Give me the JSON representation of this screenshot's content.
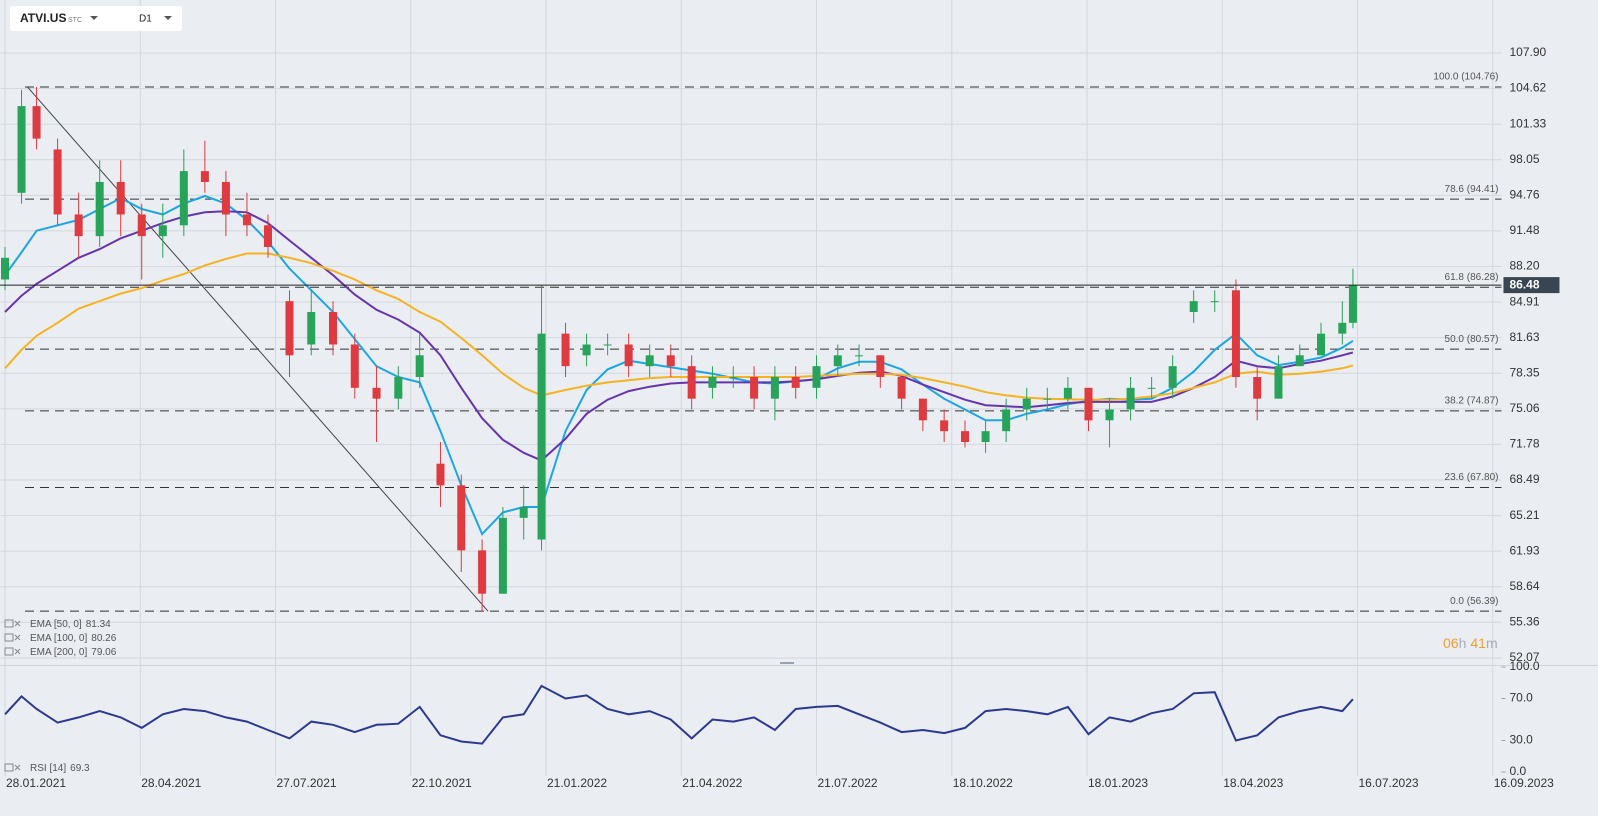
{
  "header": {
    "symbol": "ATVI.US",
    "exchange": "STC",
    "interval": "D1"
  },
  "countdown": [
    "06",
    "h",
    "41",
    "m"
  ],
  "chart_data": [
    {
      "type": "candlestick",
      "x": [
        "28.01.2021",
        "08.02.2021",
        "18.02.2021",
        "04.03.2021",
        "18.03.2021",
        "01.04.2021",
        "15.04.2021",
        "29.04.2021",
        "13.05.2021",
        "27.05.2021",
        "10.06.2021",
        "24.06.2021",
        "08.07.2021",
        "22.07.2021",
        "05.08.2021",
        "19.08.2021",
        "02.09.2021",
        "16.09.2021",
        "30.09.2021",
        "14.10.2021",
        "28.10.2021",
        "11.11.2021",
        "25.11.2021",
        "09.12.2021",
        "23.12.2021",
        "06.01.2022",
        "18.01.2022",
        "03.02.2022",
        "17.02.2022",
        "03.03.2022",
        "17.03.2022",
        "31.03.2022",
        "14.04.2022",
        "28.04.2022",
        "12.05.2022",
        "26.05.2022",
        "09.06.2022",
        "23.06.2022",
        "07.07.2022",
        "21.07.2022",
        "04.08.2022",
        "18.08.2022",
        "01.09.2022",
        "15.09.2022",
        "29.09.2022",
        "13.10.2022",
        "27.10.2022",
        "10.11.2022",
        "24.11.2022",
        "08.12.2022",
        "22.12.2022",
        "05.01.2023",
        "19.01.2023",
        "02.02.2023",
        "16.02.2023",
        "02.03.2023",
        "16.03.2023",
        "30.03.2023",
        "13.04.2023",
        "27.04.2023",
        "11.05.2023",
        "25.05.2023",
        "08.06.2023",
        "22.06.2023",
        "06.07.2023",
        "13.07.2023"
      ],
      "open": [
        87,
        95,
        103,
        99,
        93,
        91,
        96,
        93,
        91,
        92,
        97,
        96,
        93,
        92,
        85,
        81,
        84,
        81,
        77,
        76,
        78,
        70,
        68,
        62,
        58,
        65,
        63,
        82,
        80,
        81,
        81,
        79,
        80,
        79,
        77,
        78,
        78,
        76,
        78,
        77,
        79,
        80,
        80,
        78,
        76,
        74,
        73,
        72,
        73,
        75,
        76,
        76,
        77,
        74,
        75,
        77,
        77,
        84,
        85,
        86,
        78,
        76,
        79,
        80,
        82,
        83
      ],
      "high": [
        90,
        104.5,
        104.76,
        100,
        95,
        98,
        98,
        94,
        94,
        99,
        99.8,
        97,
        95,
        93,
        86,
        86,
        85,
        82,
        79,
        79,
        82,
        72,
        69,
        63,
        66,
        68,
        86.5,
        83,
        82,
        82,
        82,
        81,
        81,
        80,
        79,
        79,
        79,
        79,
        79,
        80,
        81,
        81,
        80,
        78,
        76,
        75,
        74,
        74,
        76,
        77,
        77,
        78,
        77,
        76,
        78,
        78,
        80,
        86,
        86,
        87,
        79,
        80,
        81,
        83,
        85,
        88
      ],
      "low": [
        86,
        94,
        99,
        92,
        89,
        90,
        91,
        87,
        89,
        91,
        95,
        91,
        91,
        89,
        78,
        80,
        80,
        76,
        72,
        75,
        77,
        66,
        60,
        56.39,
        58,
        63,
        62,
        78,
        79,
        80,
        78,
        78,
        78,
        75,
        76,
        77,
        75,
        74,
        76,
        76,
        78,
        79,
        77,
        75,
        73,
        72,
        71.5,
        71,
        72,
        74,
        75,
        75,
        73,
        71.5,
        74,
        76,
        76,
        83,
        84,
        77,
        74,
        76,
        79,
        80,
        81,
        82.5
      ],
      "close": [
        89,
        103,
        100,
        93,
        91,
        96,
        93,
        91,
        92,
        97,
        96,
        93,
        92,
        90,
        80,
        84,
        81,
        77,
        76,
        78,
        80,
        68,
        62,
        58,
        65,
        66,
        82,
        79,
        81,
        81,
        79,
        80,
        79,
        76,
        78,
        78,
        76,
        78,
        77,
        79,
        80,
        80,
        78,
        76,
        74,
        73,
        72,
        73,
        75,
        76,
        76,
        77,
        74,
        75,
        77,
        77,
        79,
        85,
        85,
        78,
        76,
        79,
        80,
        82,
        83,
        86.48
      ],
      "up_color": "#27a35a",
      "down_color": "#de3a3f",
      "series": [
        {
          "name": "EMA [50, 0]",
          "color": "#1ca6e2",
          "last_value": 81.34,
          "values": [
            87.4,
            89.5,
            91.5,
            92,
            92.5,
            93.5,
            94.5,
            93.5,
            93,
            94,
            94.7,
            94,
            92.5,
            90.5,
            88,
            86,
            84,
            81.5,
            79,
            78,
            77.5,
            73,
            68,
            63.5,
            65.5,
            66,
            66,
            73,
            76.8,
            78.7,
            79.5,
            79.2,
            78.9,
            78.6,
            78.3,
            77.9,
            77.5,
            77.4,
            77.6,
            77.8,
            78.8,
            79.4,
            79.4,
            78.7,
            77.3,
            76,
            75,
            74,
            74,
            74.6,
            75,
            75.5,
            75.8,
            76,
            75.9,
            76,
            77,
            78.5,
            80.5,
            82,
            80,
            79.1,
            79.4,
            79.8,
            80.7,
            81.34
          ]
        },
        {
          "name": "EMA [100, 0]",
          "color": "#6634ad",
          "last_value": 80.26,
          "values": [
            84,
            85.5,
            86.6,
            87.8,
            89,
            89.8,
            90.8,
            91.5,
            92.2,
            92.8,
            93.2,
            93.3,
            93.2,
            92.2,
            90.6,
            89,
            87.4,
            85.6,
            84.2,
            83.3,
            82.1,
            80,
            77,
            74.2,
            72.2,
            71,
            70.3,
            72.3,
            74.6,
            75.9,
            76.7,
            77.1,
            77.4,
            77.5,
            77.5,
            77.5,
            77.5,
            77.5,
            77.6,
            77.8,
            78.1,
            78.4,
            78.5,
            78.1,
            77.3,
            76.6,
            75.9,
            75.4,
            75.3,
            75.2,
            75.4,
            75.6,
            75.7,
            75.7,
            75.7,
            75.7,
            76.2,
            77,
            78,
            79.5,
            79,
            78.8,
            79.2,
            79.5,
            80,
            80.26
          ]
        },
        {
          "name": "EMA [200, 0]",
          "color": "#f6b321",
          "last_value": 79.06,
          "values": [
            78.8,
            80.5,
            81.8,
            83,
            84.3,
            85,
            85.7,
            86.2,
            86.9,
            87.5,
            88.3,
            88.9,
            89.4,
            89.4,
            89,
            88.5,
            87.8,
            87,
            86,
            85.2,
            84,
            83.1,
            81.6,
            80,
            78.3,
            77,
            76.3,
            76.8,
            77.2,
            77.5,
            77.7,
            77.9,
            78,
            78,
            78,
            78,
            78,
            78,
            78,
            78.1,
            78.2,
            78.3,
            78.3,
            78.2,
            77.9,
            77.5,
            77.1,
            76.6,
            76.3,
            76.1,
            76,
            75.95,
            75.9,
            75.9,
            76,
            76.2,
            76.5,
            77,
            77.5,
            78.3,
            78.5,
            78.2,
            78.3,
            78.5,
            78.8,
            79.06
          ]
        }
      ],
      "xlim": [
        "25.01.2021",
        "20.09.2023"
      ],
      "xticks": [
        "28.01.2021",
        "28.04.2021",
        "27.07.2021",
        "22.10.2021",
        "21.01.2022",
        "21.04.2022",
        "21.07.2022",
        "18.10.2022",
        "18.01.2023",
        "18.04.2023",
        "16.07.2023",
        "16.09.2023"
      ],
      "ylim": [
        51.42,
        111.87
      ],
      "yticks": [
        {
          "value": 107.9,
          "label": "107.90"
        },
        104.62,
        101.33,
        98.05,
        94.76,
        91.48,
        {
          "value": 88.2,
          "label": "88.20"
        },
        84.91,
        81.63,
        78.35,
        75.06,
        71.78,
        68.49,
        65.21,
        61.93,
        58.64,
        55.36,
        52.07
      ],
      "grid": true,
      "fib_levels": [
        {
          "label": "100.0 (104.76)",
          "value": 104.76
        },
        {
          "label": "78.6 (94.41)",
          "value": 94.41
        },
        {
          "label": "61.8 (86.28)",
          "value": 86.28
        },
        {
          "label": "50.0 (80.57)",
          "value": 80.57
        },
        {
          "label": "38.2 (74.87)",
          "value": 74.87
        },
        {
          "label": "23.6 (67.80)",
          "value": 67.8
        },
        {
          "label": "0.0 (56.39)",
          "value": 56.39
        }
      ],
      "fib_dates": [
        "12.02.2021",
        "13.12.2021"
      ],
      "last_price": 86.48
    },
    {
      "type": "line",
      "x": [
        "28.01.2021",
        "08.02.2021",
        "18.02.2021",
        "04.03.2021",
        "18.03.2021",
        "01.04.2021",
        "15.04.2021",
        "29.04.2021",
        "13.05.2021",
        "27.05.2021",
        "10.06.2021",
        "24.06.2021",
        "08.07.2021",
        "22.07.2021",
        "05.08.2021",
        "19.08.2021",
        "02.09.2021",
        "16.09.2021",
        "30.09.2021",
        "14.10.2021",
        "28.10.2021",
        "11.11.2021",
        "25.11.2021",
        "09.12.2021",
        "23.12.2021",
        "06.01.2022",
        "18.01.2022",
        "03.02.2022",
        "17.02.2022",
        "03.03.2022",
        "17.03.2022",
        "31.03.2022",
        "14.04.2022",
        "28.04.2022",
        "12.05.2022",
        "26.05.2022",
        "09.06.2022",
        "23.06.2022",
        "07.07.2022",
        "21.07.2022",
        "04.08.2022",
        "18.08.2022",
        "01.09.2022",
        "15.09.2022",
        "29.09.2022",
        "13.10.2022",
        "27.10.2022",
        "10.11.2022",
        "24.11.2022",
        "08.12.2022",
        "22.12.2022",
        "05.01.2023",
        "19.01.2023",
        "02.02.2023",
        "16.02.2023",
        "02.03.2023",
        "16.03.2023",
        "30.03.2023",
        "13.04.2023",
        "27.04.2023",
        "11.05.2023",
        "25.05.2023",
        "08.06.2023",
        "22.06.2023",
        "06.07.2023",
        "13.07.2023"
      ],
      "series": [
        {
          "name": "RSI [14]",
          "color": "#2b3a8f",
          "last_value": 69.3,
          "values": [
            55,
            72,
            60,
            47,
            52,
            58,
            52,
            42,
            55,
            60,
            58,
            52,
            48,
            40,
            32,
            48,
            45,
            38,
            45,
            46,
            62,
            35,
            29,
            27,
            52,
            55,
            82,
            70,
            73,
            60,
            55,
            58,
            50,
            32,
            50,
            48,
            52,
            40,
            60,
            62,
            63,
            55,
            47,
            38,
            40,
            37,
            42,
            58,
            60,
            58,
            55,
            62,
            36,
            52,
            48,
            56,
            60,
            75,
            76,
            30,
            35,
            52,
            58,
            62,
            58,
            69.3
          ]
        }
      ],
      "ylim": [
        0,
        100
      ],
      "yticks": [
        {
          "value": 100,
          "label": "100.0"
        },
        {
          "value": 70,
          "label": "70.0"
        },
        {
          "value": 30,
          "label": "30.0"
        },
        {
          "value": 0,
          "label": "0.0"
        }
      ]
    }
  ]
}
